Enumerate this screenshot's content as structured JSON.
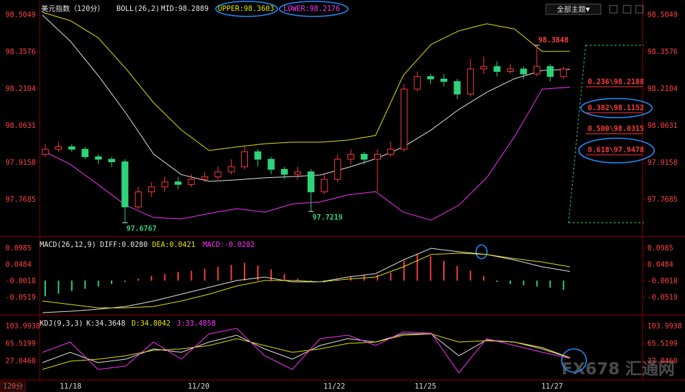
{
  "toolbar": {
    "button": "全部主题▼"
  },
  "period": "120分",
  "watermark": "FX678 汇通网",
  "x_labels": [
    "11/18",
    "11/20",
    "11/22",
    "11/25",
    "11/27"
  ],
  "chart_data": [
    {
      "type": "candlestick",
      "title": "美元指数（120分）",
      "indicator": "BOLL(26,2)",
      "open": [
        97.95,
        97.97,
        97.98,
        97.97,
        97.94,
        97.93,
        97.92,
        97.74,
        97.8,
        97.82,
        97.84,
        97.83,
        97.85,
        97.86,
        97.88,
        97.9,
        97.96,
        97.93,
        97.89,
        97.87,
        97.88,
        97.8,
        97.85,
        97.93,
        97.95,
        97.93,
        97.95,
        97.97,
        98.21,
        98.26,
        98.25,
        98.24,
        98.19,
        98.29,
        98.3,
        98.28,
        98.29,
        98.27,
        98.3,
        98.26
      ],
      "high": [
        97.99,
        98.0,
        97.99,
        97.98,
        97.95,
        97.94,
        97.93,
        97.82,
        97.84,
        97.86,
        97.86,
        97.87,
        97.88,
        97.9,
        97.93,
        97.98,
        97.97,
        97.94,
        97.9,
        97.9,
        97.89,
        97.87,
        97.95,
        97.97,
        97.96,
        97.97,
        98.0,
        98.23,
        98.28,
        98.27,
        98.27,
        98.25,
        98.33,
        98.34,
        98.32,
        98.31,
        98.3,
        98.3848,
        98.31,
        98.3
      ],
      "low": [
        97.94,
        97.96,
        97.96,
        97.93,
        97.91,
        97.9,
        97.6767,
        97.73,
        97.78,
        97.8,
        97.81,
        97.82,
        97.84,
        97.85,
        97.87,
        97.89,
        97.9,
        97.87,
        97.85,
        97.85,
        97.7219,
        97.79,
        97.84,
        97.91,
        97.91,
        97.8,
        97.94,
        97.96,
        98.2,
        98.23,
        98.22,
        98.17,
        98.18,
        98.27,
        98.26,
        98.27,
        98.25,
        98.26,
        98.24,
        98.25
      ],
      "close": [
        97.97,
        97.98,
        97.97,
        97.94,
        97.93,
        97.92,
        97.74,
        97.8,
        97.82,
        97.84,
        97.83,
        97.85,
        97.86,
        97.88,
        97.9,
        97.96,
        97.93,
        97.89,
        97.87,
        97.88,
        97.8,
        97.85,
        97.93,
        97.95,
        97.93,
        97.95,
        97.97,
        98.21,
        98.26,
        98.25,
        98.24,
        98.19,
        98.29,
        98.3,
        98.28,
        98.29,
        98.27,
        98.3,
        98.26,
        98.29
      ],
      "up_color": "#ff3b3b",
      "down_color": "#2fd37a",
      "series": [
        {
          "name": "MID:98.2889",
          "color": "#e8e8e8",
          "values": [
            98.505,
            98.401,
            98.265,
            98.115,
            97.951,
            97.869,
            97.842,
            97.848,
            97.856,
            97.861,
            97.867,
            97.897,
            97.932,
            97.979,
            98.047,
            98.129,
            98.197,
            98.251,
            98.284,
            98.2889
          ]
        },
        {
          "name": "UPPER:98.3603",
          "color": "#e6e600",
          "values": [
            98.516,
            98.483,
            98.415,
            98.292,
            98.156,
            98.047,
            97.965,
            97.979,
            97.992,
            97.998,
            97.998,
            98.006,
            98.025,
            98.265,
            98.388,
            98.442,
            98.47,
            98.45,
            98.36,
            98.3603
          ]
        },
        {
          "name": "LOWER:98.2176",
          "color": "#ff33ff",
          "values": [
            97.965,
            97.91,
            97.829,
            97.747,
            97.698,
            97.692,
            97.714,
            97.733,
            97.719,
            97.752,
            97.76,
            97.788,
            97.801,
            97.719,
            97.687,
            97.747,
            97.856,
            98.019,
            98.21,
            98.2176
          ]
        }
      ],
      "annotations": [
        98.3848,
        97.6767,
        97.7219
      ],
      "fib": [
        {
          "value": 98.2188,
          "label": "0.236\\98.2188"
        },
        {
          "value": 98.1152,
          "label": "0.382\\98.1152"
        },
        {
          "value": 98.0315,
          "label": "0.500\\98.0315"
        },
        {
          "value": 97.9478,
          "label": "0.618\\97.9478"
        }
      ],
      "ylim": [
        97.624,
        98.565
      ],
      "yticks": [
        98.5049,
        98.3576,
        98.2104,
        98.0631,
        97.9158,
        97.7685
      ]
    },
    {
      "type": "macd",
      "title": "MACD(26,12,9)",
      "series": [
        {
          "name": "DIFF:0.0280",
          "color": "#e8e8e8",
          "values": [
            -0.0978,
            -0.0936,
            -0.0873,
            -0.079,
            -0.0623,
            -0.0414,
            -0.0205,
            0.0004,
            0.0108,
            -0.0038,
            -0.0038,
            0.0108,
            0.0213,
            0.063,
            0.0985,
            0.0881,
            0.0797,
            0.063,
            0.0421,
            0.028
          ]
        },
        {
          "name": "DEA:0.0421",
          "color": "#e6e600",
          "values": [
            -0.0623,
            -0.0727,
            -0.0832,
            -0.0832,
            -0.079,
            -0.0623,
            -0.0414,
            -0.0163,
            0.0004,
            0.0004,
            -0.0038,
            0.0046,
            0.0108,
            0.0421,
            0.0797,
            0.0839,
            0.0797,
            0.0672,
            0.0568,
            0.0421
          ]
        },
        {
          "name": "MACD:-0.0282",
          "color": "#ff33ff",
          "type": "bar",
          "up_color": "#ff3b3b",
          "down_color": "#2fd37a",
          "values": [
            -0.048,
            -0.04,
            -0.032,
            -0.025,
            -0.018,
            -0.01,
            -0.004,
            0.006,
            0.014,
            0.02,
            0.026,
            0.03,
            0.036,
            0.042,
            0.048,
            0.054,
            0.046,
            0.034,
            0.02,
            0.006,
            -0.004,
            -0.006,
            0.004,
            0.01,
            0.016,
            0.018,
            0.024,
            0.06,
            0.08,
            0.074,
            0.06,
            0.044,
            0.03,
            0.014,
            -0.004,
            -0.01,
            -0.014,
            -0.018,
            -0.022,
            -0.0282
          ]
        }
      ],
      "ylim": [
        -0.1041,
        0.1361
      ],
      "yticks": [
        0.0985,
        0.0484,
        -0.0018,
        -0.0519
      ]
    },
    {
      "type": "line",
      "title": "KDJ(9,3,3)",
      "series": [
        {
          "name": "K:34.3648",
          "color": "#e8e8e8",
          "values": [
            24.0,
            46.7,
            24.0,
            31.6,
            54.2,
            46.7,
            69.3,
            84.4,
            54.2,
            31.6,
            61.7,
            76.8,
            69.3,
            87.4,
            87.4,
            39.1,
            73.8,
            69.3,
            54.2,
            34.3648
          ]
        },
        {
          "name": "D:34.8042",
          "color": "#e6e600",
          "values": [
            8.9,
            27.0,
            31.6,
            39.1,
            51.2,
            54.2,
            61.7,
            76.8,
            61.7,
            46.7,
            54.2,
            66.3,
            69.3,
            84.4,
            87.4,
            69.3,
            72.3,
            69.3,
            57.2,
            34.8042
          ]
        },
        {
          "name": "J:33.4858",
          "color": "#ff33ff",
          "values": [
            46.7,
            69.3,
            8.9,
            16.5,
            69.3,
            31.6,
            87.4,
            99.5,
            39.1,
            8.9,
            76.8,
            84.4,
            61.7,
            91.9,
            88.9,
            1.4,
            76.8,
            61.7,
            46.7,
            33.4858
          ]
        }
      ],
      "ylim": [
        -13.69,
        129.64
      ],
      "yticks": [
        103.9938,
        65.5199,
        {
          "value": 27.046,
          "label": "27.0460"
        }
      ]
    }
  ]
}
